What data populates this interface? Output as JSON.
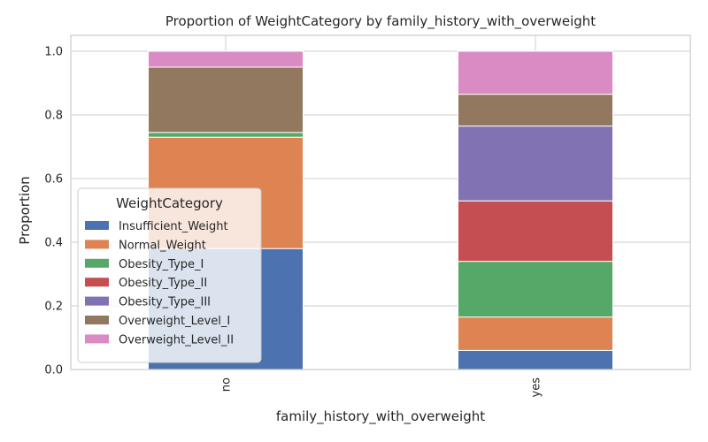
{
  "chart_data": {
    "type": "bar",
    "stacked": true,
    "title": "Proportion of WeightCategory by family_history_with_overweight",
    "xlabel": "family_history_with_overweight",
    "ylabel": "Proportion",
    "categories": [
      "no",
      "yes"
    ],
    "ylim": [
      0,
      1.05
    ],
    "yticks": [
      "0.0",
      "0.2",
      "0.4",
      "0.6",
      "0.8",
      "1.0"
    ],
    "grid": true,
    "legend": {
      "title": "WeightCategory",
      "placement": "lower-left"
    },
    "series": [
      {
        "name": "Insufficient_Weight",
        "color": "#4c72b0",
        "values": [
          0.38,
          0.06
        ]
      },
      {
        "name": "Normal_Weight",
        "color": "#dd8452",
        "values": [
          0.35,
          0.105
        ]
      },
      {
        "name": "Obesity_Type_I",
        "color": "#55a868",
        "values": [
          0.015,
          0.175
        ]
      },
      {
        "name": "Obesity_Type_II",
        "color": "#c44e52",
        "values": [
          0.0,
          0.19
        ]
      },
      {
        "name": "Obesity_Type_III",
        "color": "#8172b3",
        "values": [
          0.0,
          0.235
        ]
      },
      {
        "name": "Overweight_Level_I",
        "color": "#937860",
        "values": [
          0.205,
          0.1
        ]
      },
      {
        "name": "Overweight_Level_II",
        "color": "#da8bc3",
        "values": [
          0.05,
          0.135
        ]
      }
    ]
  }
}
